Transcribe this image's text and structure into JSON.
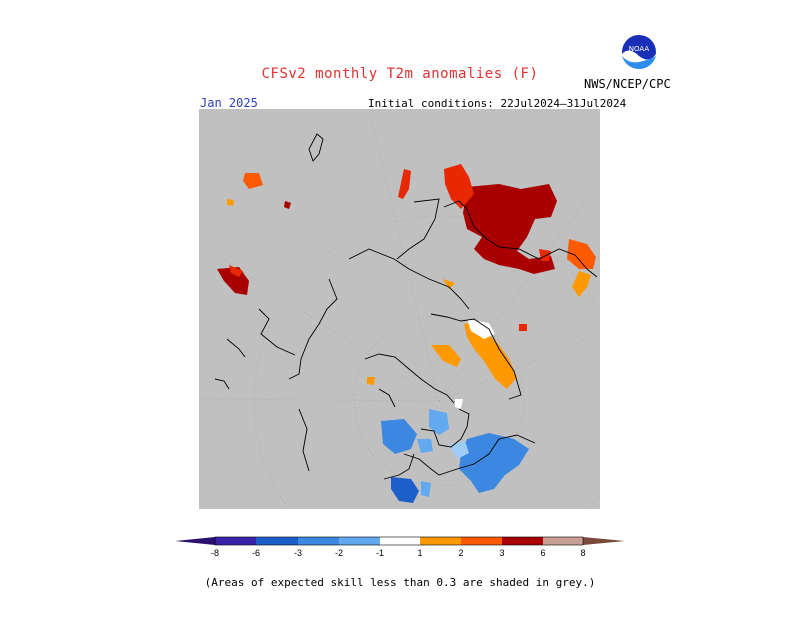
{
  "title": "CFSv2 monthly T2m anomalies (F)",
  "agency": "NWS/NCEP/CPC",
  "logo_text": "NOAA",
  "valid_month": "Jan 2025",
  "initial_conditions": "Initial conditions: 22Jul2024–31Jul2024",
  "footnote": "(Areas of expected skill less than 0.3 are shaded in grey.)",
  "colors": {
    "grey_mask": "#c0c0c0",
    "neg8": "#3a23a8",
    "neg6": "#1c5fc9",
    "neg3": "#3c87e0",
    "neg2": "#62a9f0",
    "neg1": "#a0cdf8",
    "white": "#ffffff",
    "pos1": "#ff9900",
    "pos2": "#ff5a00",
    "pos3": "#e82800",
    "pos6": "#a80000",
    "pos8": "#c8a096",
    "arrow_low": "#2a1170",
    "arrow_high": "#7a4a3a"
  },
  "colorbar": {
    "labels": [
      "-8",
      "-6",
      "-3",
      "-2",
      "-1",
      "1",
      "2",
      "3",
      "6",
      "8"
    ]
  }
}
